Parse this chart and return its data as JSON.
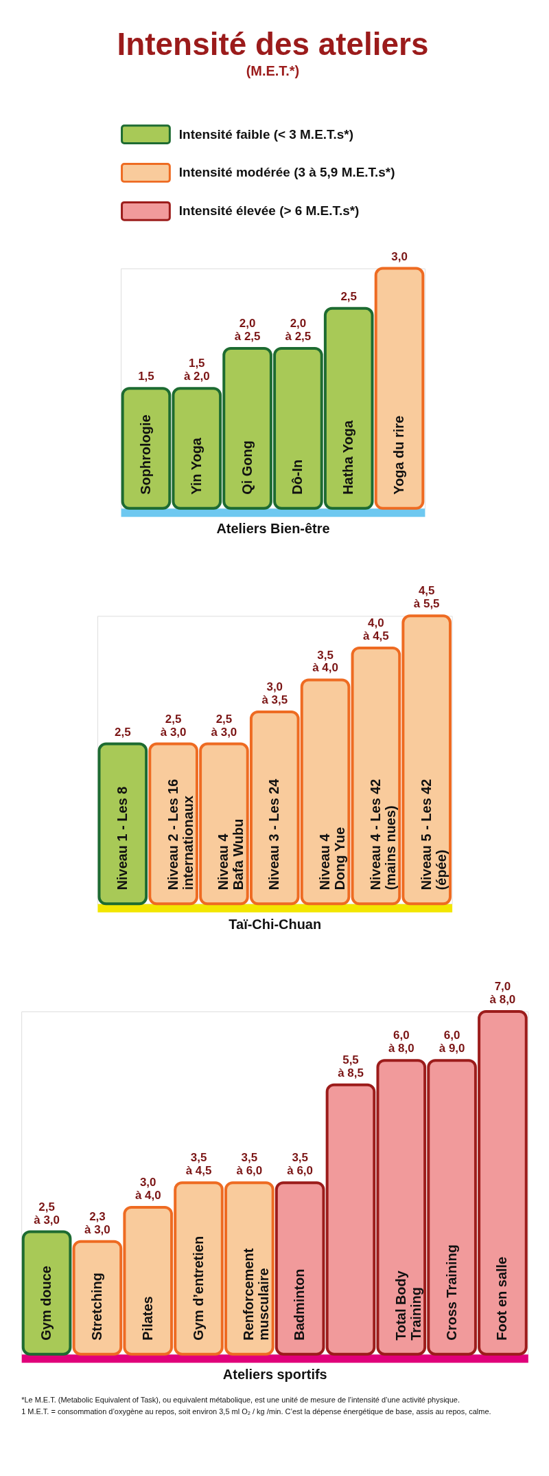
{
  "chart_data": [
    {
      "type": "bar",
      "title": "Intensité des ateliers",
      "subtitle": "(M.E.T.*)",
      "legend": "top",
      "stacked": true,
      "tick_labels": "x",
      "xlabel": "Ateliers Bien-être",
      "categories": [
        "Sophrologie",
        "Yin Yoga",
        "Qi Gong",
        "Dô-In",
        "Hatha Yoga",
        "Yoga du rire"
      ],
      "series": [
        {
          "name": "Intensité faible (< 3 M.E.T.s*)",
          "color": "#a8c957",
          "values": [
            1.5,
            1.5,
            2.0,
            2.0,
            2.5,
            null
          ],
          "value_labels": [
            "1,5",
            "1,5\nà 2,0",
            "2,0\nà 2,5",
            "2,0\nà 2,5",
            "2,5",
            null
          ]
        },
        {
          "name": "Intensité modérée (3 à 5,9 M.E.T.s*)",
          "color": "#f9cb9c",
          "values": [
            null,
            null,
            null,
            null,
            null,
            3.0
          ],
          "value_labels": [
            null,
            null,
            null,
            null,
            null,
            "3,0"
          ]
        },
        {
          "name": "Intensité élevée (> 6 M.E.T.s*)",
          "color": "#f19a9b",
          "values": [
            null,
            null,
            null,
            null,
            null,
            null
          ],
          "value_labels": [
            null,
            null,
            null,
            null,
            null,
            null
          ]
        }
      ]
    },
    {
      "type": "bar",
      "stacked": true,
      "tick_labels": "x",
      "xlabel": "Taï-Chi-Chuan",
      "categories": [
        "Niveau 1 - Les 8",
        "Niveau 2 - Les 16\ninternationaux",
        "Niveau 4\nBafa Wubu",
        "Niveau 3 - Les 24",
        "Niveau 4\nDong Yue",
        "Niveau 4 - Les 42\n(mains nues)",
        "Niveau 5 - Les 42\n(épée)"
      ],
      "series": [
        {
          "color": "#a8c957",
          "values": [
            2.5,
            null,
            null,
            null,
            null,
            null,
            null
          ],
          "value_labels": [
            "2,5",
            null,
            null,
            null,
            null,
            null,
            null
          ]
        },
        {
          "color": "#f9cb9c",
          "values": [
            null,
            2.5,
            2.5,
            3.0,
            3.5,
            4.0,
            4.5
          ],
          "value_labels": [
            null,
            "2,5\nà 3,0",
            "2,5\nà 3,0",
            "3,0\nà 3,5",
            "3,5\nà 4,0",
            "4,0\nà 4,5",
            "4,5\nà 5,5"
          ]
        }
      ]
    },
    {
      "type": "bar",
      "stacked": true,
      "tick_labels": "x",
      "xlabel": "Ateliers sportifs",
      "categories": [
        "Gym douce",
        "Stretching",
        "Pilates",
        "Gym d’entretien",
        "Renforcement\nmusculaire",
        "Badminton",
        null,
        "Total Body\nTraining",
        "Cross Training",
        "Foot en salle"
      ],
      "series": [
        {
          "color": "#a8c957",
          "values": [
            2.5,
            null,
            null,
            null,
            null,
            null,
            null,
            null,
            null,
            null
          ],
          "value_labels": [
            "2,5\nà 3,0",
            null,
            null,
            null,
            null,
            null,
            null,
            null,
            null,
            null
          ]
        },
        {
          "color": "#f9cb9c",
          "values": [
            null,
            2.3,
            3.0,
            3.5,
            3.5,
            null,
            null,
            null,
            null,
            null
          ],
          "value_labels": [
            null,
            "2,3\nà 3,0",
            "3,0\nà 4,0",
            "3,5\nà 4,5",
            "3,5\nà 6,0",
            null,
            null,
            null,
            null,
            null
          ]
        },
        {
          "color": "#f19a9b",
          "values": [
            null,
            null,
            null,
            null,
            null,
            3.5,
            5.5,
            6.0,
            6.0,
            7.0
          ],
          "value_labels": [
            null,
            null,
            null,
            null,
            null,
            "3,5\nà 6,0",
            "5,5\nà 8,5",
            "6,0\nà 8,0",
            "6,0\nà 9,0",
            "7,0\nà 8,0"
          ]
        }
      ],
      "annotations": [
        "*Le M.E.T. (Metabolic Equivalent of Task), ou equivalent métabolique, est une unité de mesure de l’intensité d’une activité physique.",
        "1 M.E.T. = consommation d’oxygène au repos, soit environ 3,5 ml O₂ / kg /min. C’est la dépense énergétique de base, assis au repos, calme."
      ]
    }
  ]
}
